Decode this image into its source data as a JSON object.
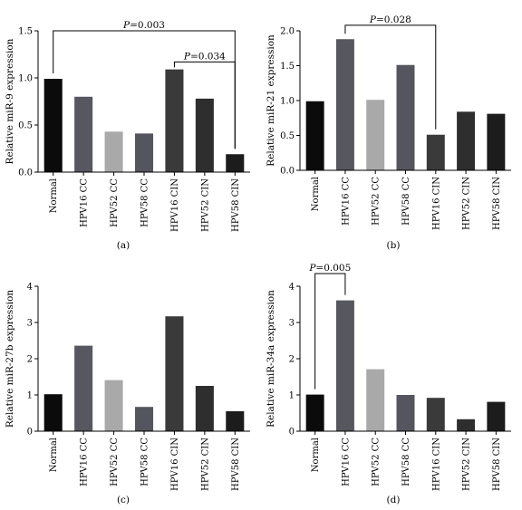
{
  "chart_data": [
    {
      "type": "bar",
      "caption": "(a)",
      "ylabel": "Relative miR-9 expression",
      "categories": [
        "Normal",
        "HPV16 CC",
        "HPV52 CC",
        "HPV58 CC",
        "HPV16 CIN",
        "HPV52 CIN",
        "HPV58 CIN"
      ],
      "values": [
        0.99,
        0.8,
        0.43,
        0.41,
        1.09,
        0.78,
        0.19
      ],
      "colors": [
        "#0b0b0b",
        "#57575f",
        "#a9a9a9",
        "#55555f",
        "#3a3a3a",
        "#2e2e2e",
        "#1c1c1c"
      ],
      "ylim": [
        0,
        1.5
      ],
      "yticks": [
        "0.0",
        "0.5",
        "1.0",
        "1.5"
      ],
      "annotations": [
        {
          "p_label": "P",
          "p_value": "=0.003",
          "from": 0,
          "to": 6,
          "level": 1.5
        },
        {
          "p_label": "P",
          "p_value": "=0.034",
          "from": 4,
          "to": 6,
          "level": 1.17
        }
      ]
    },
    {
      "type": "bar",
      "caption": "(b)",
      "ylabel": "Relative miR-21 expression",
      "categories": [
        "Normal",
        "HPV16 CC",
        "HPV52 CC",
        "HPV58 CC",
        "HPV16 CIN",
        "HPV52 CIN",
        "HPV58 CIN"
      ],
      "values": [
        0.99,
        1.88,
        1.01,
        1.51,
        0.51,
        0.84,
        0.81
      ],
      "colors": [
        "#0b0b0b",
        "#57575f",
        "#a9a9a9",
        "#55555f",
        "#3a3a3a",
        "#2e2e2e",
        "#1c1c1c"
      ],
      "ylim": [
        0,
        2.0
      ],
      "yticks": [
        "0.0",
        "0.5",
        "1.0",
        "1.5",
        "2.0"
      ],
      "annotations": [
        {
          "p_label": "P",
          "p_value": "=0.028",
          "from": 1,
          "to": 4,
          "level": 2.08
        }
      ]
    },
    {
      "type": "bar",
      "caption": "(c)",
      "ylabel": "Relative miR-27b expression",
      "categories": [
        "Normal",
        "HPV16 CC",
        "HPV52 CC",
        "HPV58 CC",
        "HPV16 CIN",
        "HPV52 CIN",
        "HPV58 CIN"
      ],
      "values": [
        1.02,
        2.36,
        1.41,
        0.67,
        3.17,
        1.25,
        0.55
      ],
      "colors": [
        "#0b0b0b",
        "#57575f",
        "#a9a9a9",
        "#55555f",
        "#3a3a3a",
        "#2e2e2e",
        "#1c1c1c"
      ],
      "ylim": [
        0,
        4
      ],
      "yticks": [
        "0",
        "1",
        "2",
        "3",
        "4"
      ],
      "annotations": []
    },
    {
      "type": "bar",
      "caption": "(d)",
      "ylabel": "Relative miR-34a expression",
      "categories": [
        "Normal",
        "HPV16 CC",
        "HPV52 CC",
        "HPV58 CC",
        "HPV16 CIN",
        "HPV52 CIN",
        "HPV58 CIN"
      ],
      "values": [
        1.01,
        3.61,
        1.71,
        1.0,
        0.92,
        0.33,
        0.81
      ],
      "colors": [
        "#0b0b0b",
        "#57575f",
        "#a9a9a9",
        "#55555f",
        "#3a3a3a",
        "#2e2e2e",
        "#1c1c1c"
      ],
      "ylim": [
        0,
        4
      ],
      "yticks": [
        "0",
        "1",
        "2",
        "3",
        "4"
      ],
      "annotations": [
        {
          "p_label": "P",
          "p_value": "=0.005",
          "from": 0,
          "to": 1,
          "level": 4.35
        }
      ]
    }
  ]
}
